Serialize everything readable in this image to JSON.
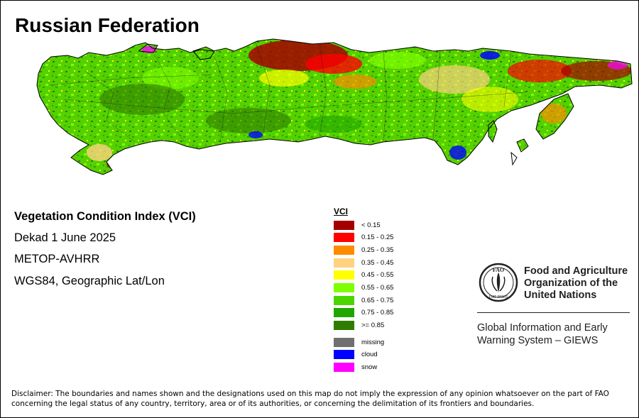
{
  "map": {
    "title": "Russian Federation",
    "index_name": "Vegetation Condition Index (VCI)",
    "period": "Dekad 1 June 2025",
    "sensor": "METOP-AVHRR",
    "projection": "WGS84, Geographic Lat/Lon"
  },
  "legend": {
    "title": "VCI",
    "classes": [
      {
        "label": "< 0.15",
        "color": "#A50000"
      },
      {
        "label": "0.15 - 0.25",
        "color": "#FF0000"
      },
      {
        "label": "0.25 - 0.35",
        "color": "#FF8C00"
      },
      {
        "label": "0.35 - 0.45",
        "color": "#FFD27F"
      },
      {
        "label": "0.45 - 0.55",
        "color": "#FFFF00"
      },
      {
        "label": "0.55 - 0.65",
        "color": "#7FFF00"
      },
      {
        "label": "0.65 - 0.75",
        "color": "#4CD600"
      },
      {
        "label": "0.75 - 0.85",
        "color": "#1FA600"
      },
      {
        "label": ">= 0.85",
        "color": "#2E7D00"
      }
    ],
    "special": [
      {
        "label": "missing",
        "color": "#707070"
      },
      {
        "label": "cloud",
        "color": "#0000FF"
      },
      {
        "label": "snow",
        "color": "#FF00FF"
      }
    ]
  },
  "organization": {
    "name_line1": "Food and Agriculture",
    "name_line2": "Organization of the",
    "name_line3": "United Nations",
    "logo_letters": "FAO",
    "logo_motto": "FIAT PANIS",
    "system_line1": "Global Information and Early",
    "system_line2": "Warning System – GIEWS"
  },
  "disclaimer": "Disclaimer: The boundaries and names shown and the designations used on this map do not imply the expression of any opinion whatsoever on the part of FAO concerning the legal status of any country, territory, area or of its authorities, or concerning the delimitation of its frontiers and boundaries."
}
